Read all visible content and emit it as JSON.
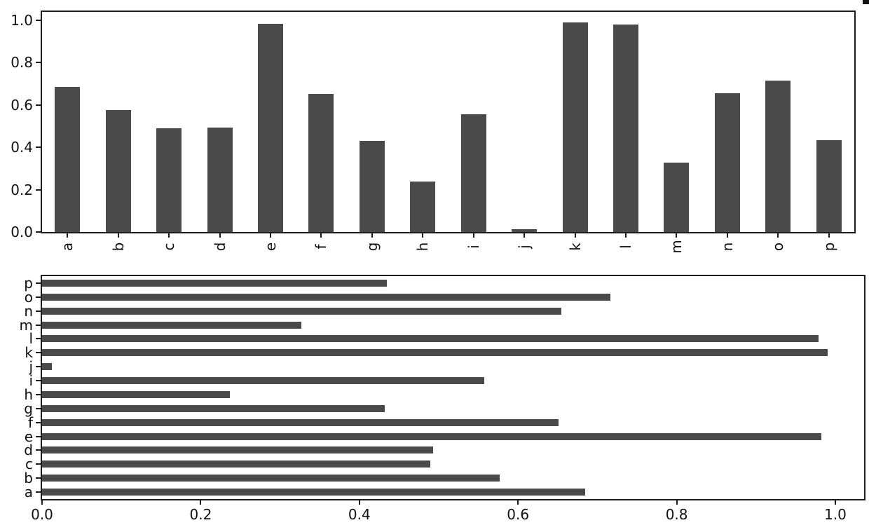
{
  "figure": {
    "background": "#ffffff",
    "bar_color": "#4a4a4a",
    "axis_color": "#1c1c1c",
    "text_color": "#111111"
  },
  "chart_data": [
    {
      "type": "bar",
      "title": "",
      "xlabel": "",
      "ylabel": "",
      "grid": false,
      "legend": "none",
      "categories": [
        "a",
        "b",
        "c",
        "d",
        "e",
        "f",
        "g",
        "h",
        "i",
        "j",
        "k",
        "l",
        "m",
        "n",
        "o",
        "p"
      ],
      "values": [
        0.685,
        0.577,
        0.489,
        0.493,
        0.982,
        0.651,
        0.432,
        0.237,
        0.557,
        0.012,
        0.99,
        0.979,
        0.327,
        0.655,
        0.716,
        0.435
      ],
      "ylim": [
        0,
        1.04
      ],
      "yticks": [
        "0.0",
        "0.2",
        "0.4",
        "0.6",
        "0.8",
        "1.0"
      ],
      "xtick_label_rotation": 90
    },
    {
      "type": "barh",
      "title": "",
      "xlabel": "",
      "ylabel": "",
      "grid": false,
      "legend": "none",
      "categories": [
        "a",
        "b",
        "c",
        "d",
        "e",
        "f",
        "g",
        "h",
        "i",
        "j",
        "k",
        "l",
        "m",
        "n",
        "o",
        "p"
      ],
      "category_order": "bottom-to-top",
      "values": [
        0.685,
        0.577,
        0.489,
        0.493,
        0.982,
        0.651,
        0.432,
        0.237,
        0.557,
        0.012,
        0.99,
        0.979,
        0.327,
        0.655,
        0.716,
        0.435
      ],
      "xlim": [
        0,
        1.04
      ],
      "xticks": [
        "0.0",
        "0.2",
        "0.4",
        "0.6",
        "0.8",
        "1.0"
      ]
    }
  ]
}
